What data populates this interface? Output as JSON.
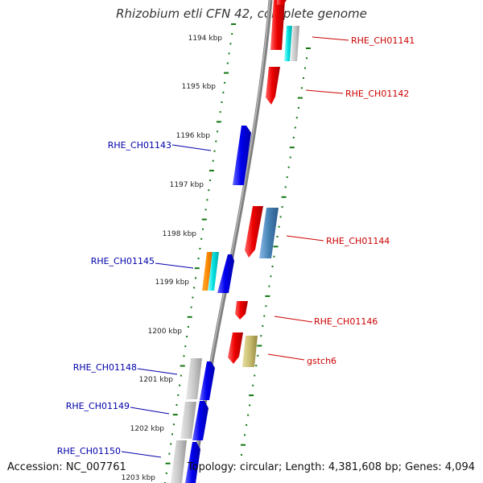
{
  "title": "Rhizobium etli CFN 42, complete genome",
  "accession": "Accession: NC_007761",
  "topology": "Topology: circular; Length: 4,381,608 bp; Genes: 4,094",
  "colors": {
    "forward_gene": "#ee0000",
    "reverse_gene": "#0000ee",
    "forward_label": "#cc0000",
    "reverse_label": "#0000aa",
    "ruler_tick": "#117711",
    "backbone": "#808080"
  },
  "kbp_labels": [
    "1194 kbp",
    "1195 kbp",
    "1196 kbp",
    "1197 kbp",
    "1198 kbp",
    "1199 kbp",
    "1200 kbp",
    "1201 kbp",
    "1202 kbp",
    "1203 kbp"
  ],
  "genes": [
    {
      "label": "RHE_CH01141",
      "strand": "forward"
    },
    {
      "label": "RHE_CH01142",
      "strand": "forward"
    },
    {
      "label": "RHE_CH01143",
      "strand": "reverse"
    },
    {
      "label": "RHE_CH01144",
      "strand": "forward"
    },
    {
      "label": "RHE_CH01145",
      "strand": "reverse"
    },
    {
      "label": "RHE_CH01146",
      "strand": "forward"
    },
    {
      "label": "gstch6",
      "strand": "forward"
    },
    {
      "label": "RHE_CH01148",
      "strand": "reverse"
    },
    {
      "label": "RHE_CH01149",
      "strand": "reverse"
    },
    {
      "label": "RHE_CH01150",
      "strand": "reverse"
    }
  ]
}
